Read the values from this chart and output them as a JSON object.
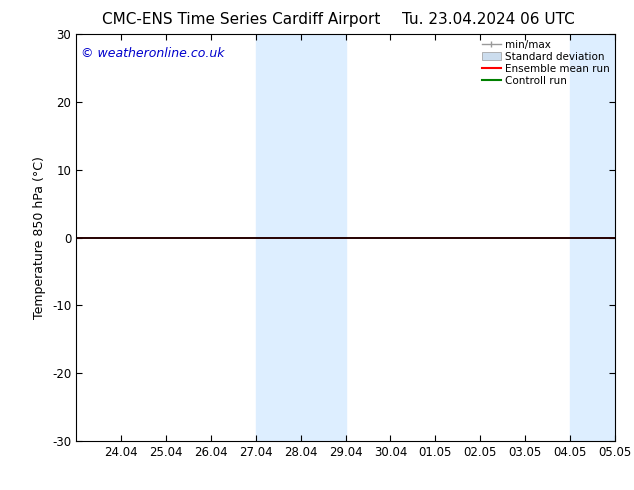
{
  "title_left": "CMC-ENS Time Series Cardiff Airport",
  "title_right": "Tu. 23.04.2024 06 UTC",
  "ylabel": "Temperature 850 hPa (°C)",
  "watermark": "© weatheronline.co.uk",
  "watermark_color": "#0000cc",
  "ylim": [
    -30,
    30
  ],
  "yticks": [
    -30,
    -20,
    -10,
    0,
    10,
    20,
    30
  ],
  "xtick_labels": [
    "24.04",
    "25.04",
    "26.04",
    "27.04",
    "28.04",
    "29.04",
    "30.04",
    "01.05",
    "02.05",
    "03.05",
    "04.05",
    "05.05"
  ],
  "shaded_color": "#ddeeff",
  "line_color_black": "#000000",
  "line_color_green": "#008000",
  "line_color_red": "#ff0000",
  "background_color": "#ffffff",
  "legend_items": [
    "min/max",
    "Standard deviation",
    "Ensemble mean run",
    "Controll run"
  ],
  "title_fontsize": 11,
  "label_fontsize": 9,
  "tick_fontsize": 8.5,
  "watermark_fontsize": 9
}
